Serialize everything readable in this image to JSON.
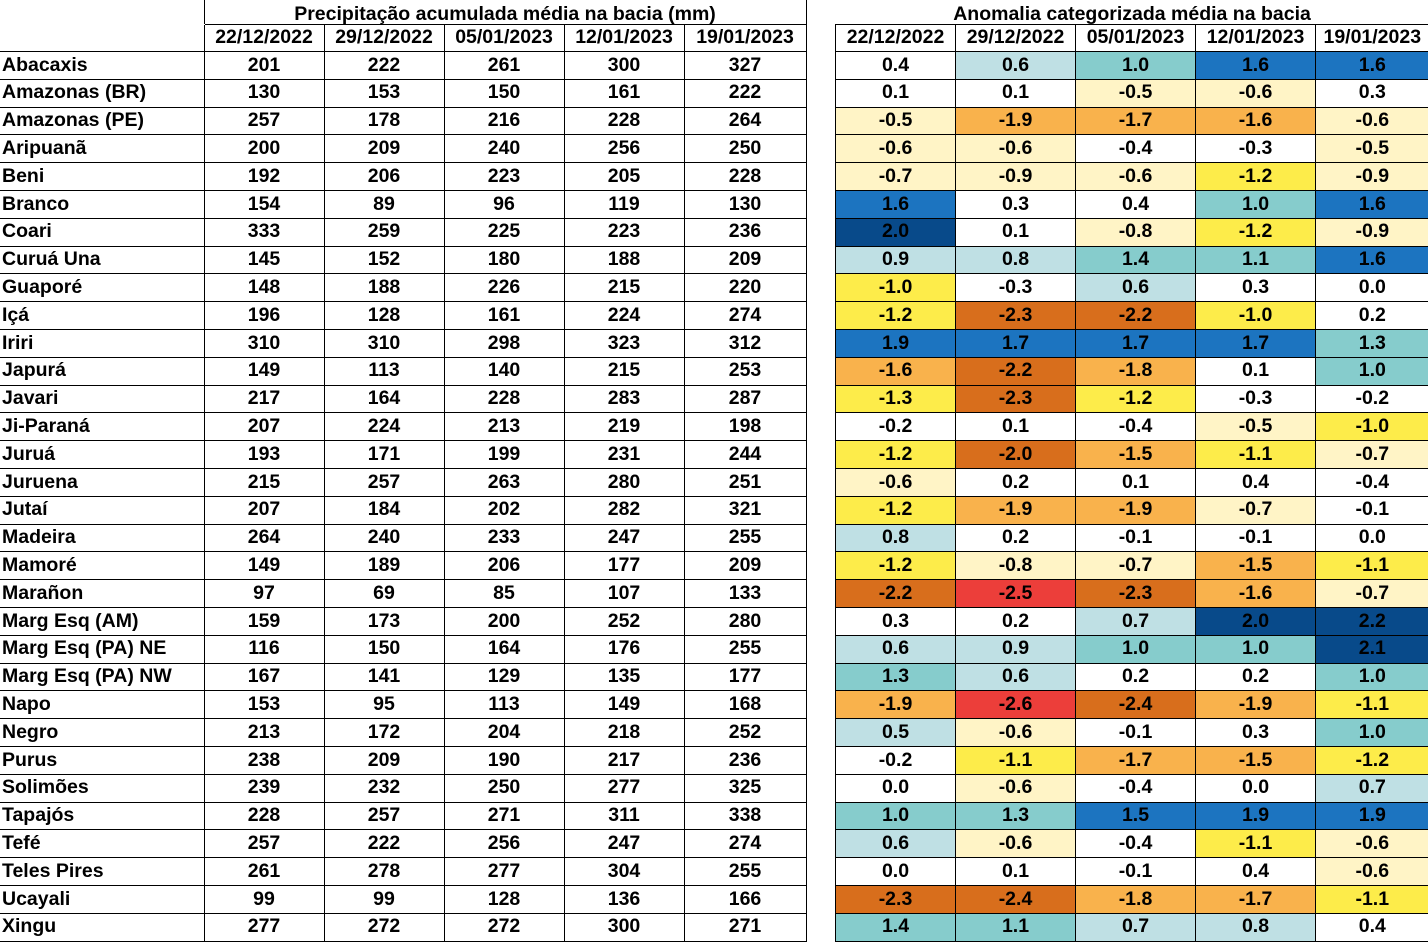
{
  "precip": {
    "title": "Precipitação acumulada média na bacia (mm)",
    "dates": [
      "22/12/2022",
      "29/12/2022",
      "05/01/2023",
      "12/01/2023",
      "19/01/2023"
    ]
  },
  "anom": {
    "title": "Anomalia categorizada média na bacia",
    "dates": [
      "22/12/2022",
      "29/12/2022",
      "05/01/2023",
      "12/01/2023",
      "19/01/2023"
    ]
  },
  "colors": {
    "cat_p2": "#084a8a",
    "cat_p15": "#1c74c0",
    "cat_p1": "#86cccc",
    "cat_p05": "#bfe0e4",
    "cat_0": "#ffffff",
    "cat_m05": "#fff4c6",
    "cat_m1": "#fdec4a",
    "cat_m15": "#f9b24c",
    "cat_m2": "#d86e1c",
    "cat_m25": "#ec3e3a"
  },
  "rows": [
    {
      "name": "Abacaxis",
      "precip": [
        "201",
        "222",
        "261",
        "300",
        "327"
      ],
      "anom": [
        "0.4",
        "0.6",
        "1.0",
        "1.6",
        "1.6"
      ]
    },
    {
      "name": "Amazonas (BR)",
      "precip": [
        "130",
        "153",
        "150",
        "161",
        "222"
      ],
      "anom": [
        "0.1",
        "0.1",
        "-0.5",
        "-0.6",
        "0.3"
      ]
    },
    {
      "name": "Amazonas (PE)",
      "precip": [
        "257",
        "178",
        "216",
        "228",
        "264"
      ],
      "anom": [
        "-0.5",
        "-1.9",
        "-1.7",
        "-1.6",
        "-0.6"
      ]
    },
    {
      "name": "Aripuanã",
      "precip": [
        "200",
        "209",
        "240",
        "256",
        "250"
      ],
      "anom": [
        "-0.6",
        "-0.6",
        "-0.4",
        "-0.3",
        "-0.5"
      ]
    },
    {
      "name": "Beni",
      "precip": [
        "192",
        "206",
        "223",
        "205",
        "228"
      ],
      "anom": [
        "-0.7",
        "-0.9",
        "-0.6",
        "-1.2",
        "-0.9"
      ]
    },
    {
      "name": "Branco",
      "precip": [
        "154",
        "89",
        "96",
        "119",
        "130"
      ],
      "anom": [
        "1.6",
        "0.3",
        "0.4",
        "1.0",
        "1.6"
      ]
    },
    {
      "name": "Coari",
      "precip": [
        "333",
        "259",
        "225",
        "223",
        "236"
      ],
      "anom": [
        "2.0",
        "0.1",
        "-0.8",
        "-1.2",
        "-0.9"
      ]
    },
    {
      "name": "Curuá Una",
      "precip": [
        "145",
        "152",
        "180",
        "188",
        "209"
      ],
      "anom": [
        "0.9",
        "0.8",
        "1.4",
        "1.1",
        "1.6"
      ]
    },
    {
      "name": "Guaporé",
      "precip": [
        "148",
        "188",
        "226",
        "215",
        "220"
      ],
      "anom": [
        "-1.0",
        "-0.3",
        "0.6",
        "0.3",
        "0.0"
      ]
    },
    {
      "name": "Içá",
      "precip": [
        "196",
        "128",
        "161",
        "224",
        "274"
      ],
      "anom": [
        "-1.2",
        "-2.3",
        "-2.2",
        "-1.0",
        "0.2"
      ]
    },
    {
      "name": "Iriri",
      "precip": [
        "310",
        "310",
        "298",
        "323",
        "312"
      ],
      "anom": [
        "1.9",
        "1.7",
        "1.7",
        "1.7",
        "1.3"
      ]
    },
    {
      "name": "Japurá",
      "precip": [
        "149",
        "113",
        "140",
        "215",
        "253"
      ],
      "anom": [
        "-1.6",
        "-2.2",
        "-1.8",
        "0.1",
        "1.0"
      ]
    },
    {
      "name": "Javari",
      "precip": [
        "217",
        "164",
        "228",
        "283",
        "287"
      ],
      "anom": [
        "-1.3",
        "-2.3",
        "-1.2",
        "-0.3",
        "-0.2"
      ]
    },
    {
      "name": "Ji-Paraná",
      "precip": [
        "207",
        "224",
        "213",
        "219",
        "198"
      ],
      "anom": [
        "-0.2",
        "0.1",
        "-0.4",
        "-0.5",
        "-1.0"
      ]
    },
    {
      "name": "Juruá",
      "precip": [
        "193",
        "171",
        "199",
        "231",
        "244"
      ],
      "anom": [
        "-1.2",
        "-2.0",
        "-1.5",
        "-1.1",
        "-0.7"
      ]
    },
    {
      "name": "Juruena",
      "precip": [
        "215",
        "257",
        "263",
        "280",
        "251"
      ],
      "anom": [
        "-0.6",
        "0.2",
        "0.1",
        "0.4",
        "-0.4"
      ]
    },
    {
      "name": "Jutaí",
      "precip": [
        "207",
        "184",
        "202",
        "282",
        "321"
      ],
      "anom": [
        "-1.2",
        "-1.9",
        "-1.9",
        "-0.7",
        "-0.1"
      ]
    },
    {
      "name": "Madeira",
      "precip": [
        "264",
        "240",
        "233",
        "247",
        "255"
      ],
      "anom": [
        "0.8",
        "0.2",
        "-0.1",
        "-0.1",
        "0.0"
      ]
    },
    {
      "name": "Mamoré",
      "precip": [
        "149",
        "189",
        "206",
        "177",
        "209"
      ],
      "anom": [
        "-1.2",
        "-0.8",
        "-0.7",
        "-1.5",
        "-1.1"
      ]
    },
    {
      "name": "Marañon",
      "precip": [
        "97",
        "69",
        "85",
        "107",
        "133"
      ],
      "anom": [
        "-2.2",
        "-2.5",
        "-2.3",
        "-1.6",
        "-0.7"
      ]
    },
    {
      "name": "Marg Esq (AM)",
      "precip": [
        "159",
        "173",
        "200",
        "252",
        "280"
      ],
      "anom": [
        "0.3",
        "0.2",
        "0.7",
        "2.0",
        "2.2"
      ]
    },
    {
      "name": "Marg Esq (PA) NE",
      "precip": [
        "116",
        "150",
        "164",
        "176",
        "255"
      ],
      "anom": [
        "0.6",
        "0.9",
        "1.0",
        "1.0",
        "2.1"
      ]
    },
    {
      "name": "Marg Esq (PA) NW",
      "precip": [
        "167",
        "141",
        "129",
        "135",
        "177"
      ],
      "anom": [
        "1.3",
        "0.6",
        "0.2",
        "0.2",
        "1.0"
      ]
    },
    {
      "name": "Napo",
      "precip": [
        "153",
        "95",
        "113",
        "149",
        "168"
      ],
      "anom": [
        "-1.9",
        "-2.6",
        "-2.4",
        "-1.9",
        "-1.1"
      ]
    },
    {
      "name": "Negro",
      "precip": [
        "213",
        "172",
        "204",
        "218",
        "252"
      ],
      "anom": [
        "0.5",
        "-0.6",
        "-0.1",
        "0.3",
        "1.0"
      ]
    },
    {
      "name": "Purus",
      "precip": [
        "238",
        "209",
        "190",
        "217",
        "236"
      ],
      "anom": [
        "-0.2",
        "-1.1",
        "-1.7",
        "-1.5",
        "-1.2"
      ]
    },
    {
      "name": "Solimões",
      "precip": [
        "239",
        "232",
        "250",
        "277",
        "325"
      ],
      "anom": [
        "0.0",
        "-0.6",
        "-0.4",
        "0.0",
        "0.7"
      ]
    },
    {
      "name": "Tapajós",
      "precip": [
        "228",
        "257",
        "271",
        "311",
        "338"
      ],
      "anom": [
        "1.0",
        "1.3",
        "1.5",
        "1.9",
        "1.9"
      ]
    },
    {
      "name": "Tefé",
      "precip": [
        "257",
        "222",
        "256",
        "247",
        "274"
      ],
      "anom": [
        "0.6",
        "-0.6",
        "-0.4",
        "-1.1",
        "-0.6"
      ]
    },
    {
      "name": "Teles Pires",
      "precip": [
        "261",
        "278",
        "277",
        "304",
        "255"
      ],
      "anom": [
        "0.0",
        "0.1",
        "-0.1",
        "0.4",
        "-0.6"
      ]
    },
    {
      "name": "Ucayali",
      "precip": [
        "99",
        "99",
        "128",
        "136",
        "166"
      ],
      "anom": [
        "-2.3",
        "-2.4",
        "-1.8",
        "-1.7",
        "-1.1"
      ]
    },
    {
      "name": "Xingu",
      "precip": [
        "277",
        "272",
        "272",
        "300",
        "271"
      ],
      "anom": [
        "1.4",
        "1.1",
        "0.7",
        "0.8",
        "0.4"
      ]
    }
  ]
}
